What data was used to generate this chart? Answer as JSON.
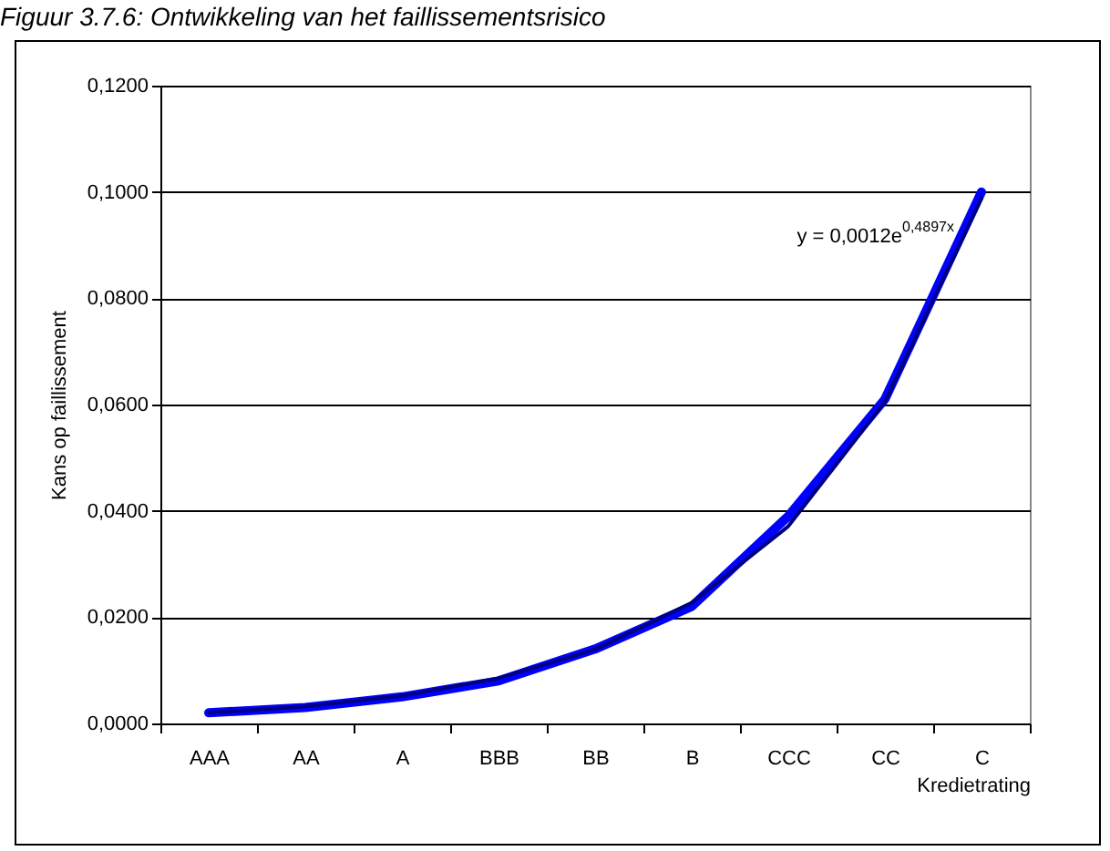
{
  "chart_data": {
    "type": "line",
    "title": "Figuur 3.7.6: Ontwikkeling van het faillissementsrisico",
    "xlabel": "Kredietrating",
    "ylabel": "Kans op faillissement",
    "categories": [
      "AAA",
      "AA",
      "A",
      "BBB",
      "BB",
      "B",
      "CCC",
      "CC",
      "C"
    ],
    "series": [
      {
        "color": "#0000ff",
        "values": [
          0.002,
          0.003,
          0.005,
          0.008,
          0.014,
          0.022,
          0.039,
          0.061,
          0.1
        ]
      },
      {
        "type": "line",
        "color": "#000080",
        "values": [
          0.002,
          0.0032,
          0.0052,
          0.0085,
          0.0139,
          0.0227,
          0.0371,
          0.0605,
          0.0988
        ]
      }
    ],
    "ylim": [
      0,
      0.12
    ],
    "yticks": [
      {
        "value": 0,
        "label": "0,0000"
      },
      {
        "value": 0.02,
        "label": "0,0200"
      },
      {
        "value": 0.04,
        "label": "0,0400"
      },
      {
        "value": 0.06,
        "label": "0,0600"
      },
      {
        "value": 0.08,
        "label": "0,0800"
      },
      {
        "value": 0.1,
        "label": "0,1000"
      },
      {
        "value": 0.12,
        "label": "0,1200"
      }
    ],
    "grid": "y",
    "marker": "none",
    "line_style": "solid",
    "annotations": [
      "y = 0,0012e$^{0,4897x}$"
    ]
  }
}
